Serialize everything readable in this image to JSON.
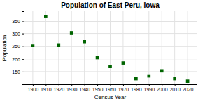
{
  "chart_data": {
    "type": "scatter",
    "title": "Population of East Peru, Iowa",
    "x_label": "Census Year",
    "y_label": "Population",
    "x": [
      1900,
      1910,
      1920,
      1930,
      1940,
      1950,
      1960,
      1970,
      1980,
      1990,
      2000,
      2010,
      2020
    ],
    "values": [
      253,
      369,
      255,
      303,
      268,
      205,
      170,
      184,
      122,
      133,
      153,
      122,
      112
    ],
    "color": "#006400",
    "marker": "square",
    "xlim": [
      1893,
      2027
    ],
    "ylim": [
      100,
      390
    ],
    "xticks": [
      1900,
      1910,
      1920,
      1930,
      1940,
      1950,
      1960,
      1970,
      1980,
      1990,
      2000,
      2010,
      2020
    ],
    "yticks": [
      150,
      200,
      250,
      300,
      350
    ],
    "grid": true
  }
}
